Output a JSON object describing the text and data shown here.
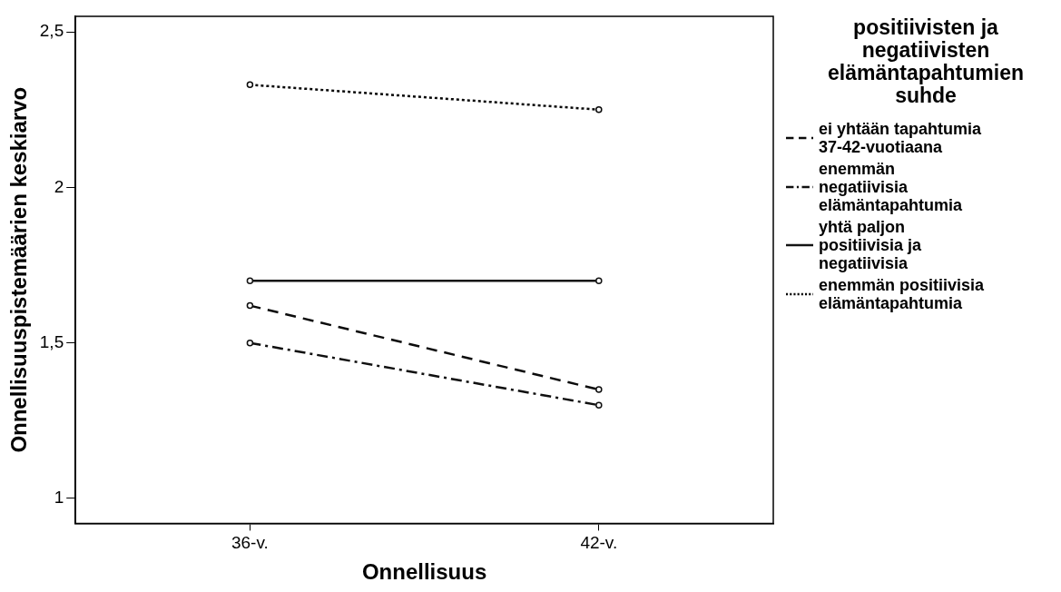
{
  "chart_data": {
    "type": "line",
    "xlabel": "Onnellisuus",
    "ylabel": "Onnellisuuspistemäärien keskiarvo",
    "legend_title": "positiivisten ja negatiivisten elämäntapahtumien suhde",
    "categories": [
      "36-v.",
      "42-v."
    ],
    "series": [
      {
        "name": "ei yhtään tapahtumia 37-42-vuotiaana",
        "color": "#0c0c0c",
        "values": [
          1.62,
          1.35
        ],
        "line_style": "dashed"
      },
      {
        "name": "enemmän negatiivisia elämäntapahtumia",
        "color": "#101010",
        "values": [
          1.5,
          1.3
        ],
        "line_style": "dashdot"
      },
      {
        "name": "yhtä paljon positiivisia ja negatiivisia",
        "color": "#141414",
        "values": [
          1.7,
          1.7
        ],
        "line_style": "solid"
      },
      {
        "name": "enemmän positiivisia elämäntapahtumia",
        "color": "#080808",
        "values": [
          2.33,
          2.25
        ],
        "line_style": "dotted"
      }
    ],
    "ylim": [
      0.92,
      2.55
    ],
    "yticks": [
      1,
      {
        "value": 1.5,
        "label": "1,5"
      },
      2,
      {
        "value": 2.5,
        "label": "2,5"
      }
    ],
    "grid": false,
    "legend": "right",
    "marker": "circle"
  }
}
